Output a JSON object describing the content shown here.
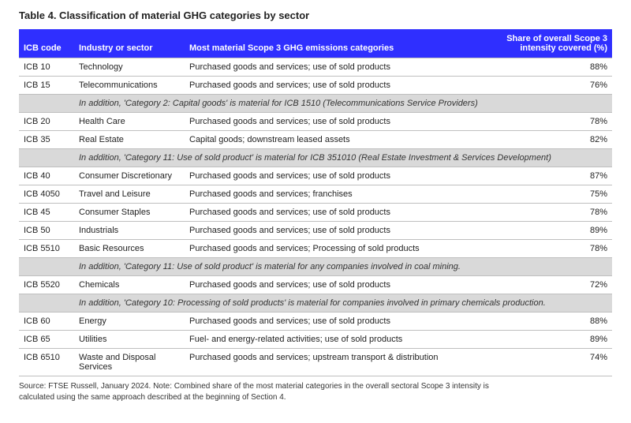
{
  "title": "Table 4. Classification of material GHG categories by sector",
  "columns": {
    "code": "ICB code",
    "industry": "Industry or sector",
    "categories": "Most material Scope 3 GHG emissions categories",
    "share": "Share of overall Scope 3 intensity covered (%)"
  },
  "colors": {
    "header_bg": "#2f2fff",
    "header_text": "#ffffff",
    "row_border": "#bfbfbf",
    "note_bg": "#d9d9d9",
    "text": "#222222",
    "background": "#ffffff"
  },
  "rows": [
    {
      "type": "data",
      "code": "ICB 10",
      "industry": "Technology",
      "categories": "Purchased goods and services; use of sold products",
      "share": "88%"
    },
    {
      "type": "data",
      "code": "ICB 15",
      "industry": "Telecommunications",
      "categories": "Purchased goods and services; use of sold products",
      "share": "76%"
    },
    {
      "type": "note",
      "text": "In addition, 'Category 2: Capital goods' is material for ICB 1510 (Telecommunications Service Providers)"
    },
    {
      "type": "data",
      "code": "ICB 20",
      "industry": "Health Care",
      "categories": "Purchased goods and services; use of sold products",
      "share": "78%"
    },
    {
      "type": "data",
      "code": "ICB 35",
      "industry": "Real Estate",
      "categories": "Capital goods; downstream leased assets",
      "share": "82%"
    },
    {
      "type": "note",
      "text": "In addition, 'Category 11: Use of sold product' is material for ICB 351010 (Real Estate Investment & Services Development)"
    },
    {
      "type": "data",
      "code": "ICB 40",
      "industry": "Consumer Discretionary",
      "categories": "Purchased goods and services; use of sold products",
      "share": "87%"
    },
    {
      "type": "data",
      "code": "ICB 4050",
      "industry": "Travel and Leisure",
      "categories": "Purchased goods and services; franchises",
      "share": "75%"
    },
    {
      "type": "data",
      "code": "ICB 45",
      "industry": "Consumer Staples",
      "categories": "Purchased goods and services; use of sold products",
      "share": "78%"
    },
    {
      "type": "data",
      "code": "ICB 50",
      "industry": "Industrials",
      "categories": "Purchased goods and services; use of sold products",
      "share": "89%"
    },
    {
      "type": "data",
      "code": "ICB 5510",
      "industry": "Basic Resources",
      "categories": "Purchased goods and services; Processing of sold products",
      "share": "78%"
    },
    {
      "type": "note",
      "text": "In addition, 'Category 11: Use of sold product' is material for any companies involved in coal mining."
    },
    {
      "type": "data",
      "code": "ICB 5520",
      "industry": "Chemicals",
      "categories": "Purchased goods and services; use of sold products",
      "share": "72%"
    },
    {
      "type": "note",
      "text": "In addition, 'Category 10: Processing of sold products' is material for companies involved in primary chemicals production."
    },
    {
      "type": "data",
      "code": "ICB 60",
      "industry": "Energy",
      "categories": "Purchased goods and services; use of sold products",
      "share": "88%"
    },
    {
      "type": "data",
      "code": "ICB 65",
      "industry": "Utilities",
      "categories": "Fuel- and energy-related activities; use of sold products",
      "share": "89%"
    },
    {
      "type": "data",
      "code": "ICB 6510",
      "industry": "Waste and Disposal Services",
      "categories": "Purchased goods and services; upstream transport & distribution",
      "share": "74%"
    }
  ],
  "source": "Source: FTSE Russell, January 2024. Note: Combined share of the most material categories in the overall sectoral Scope 3 intensity is calculated using the same approach described at the beginning of Section 4."
}
